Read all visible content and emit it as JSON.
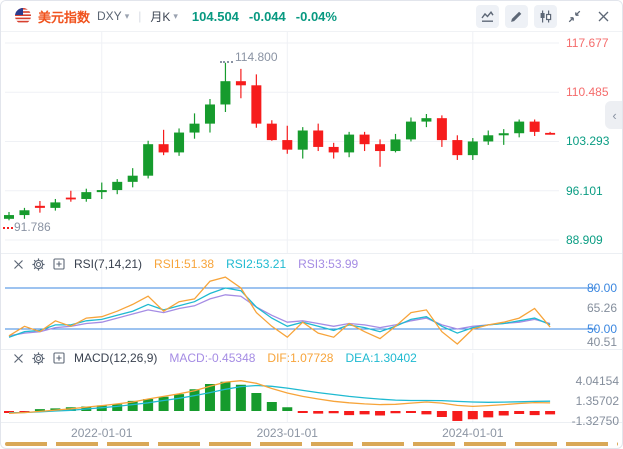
{
  "colors": {
    "up": "#169b2d",
    "down": "#f61c1c",
    "brand_orange": "#f0521d",
    "quote_teal": "#089981",
    "axis_red": "#f56c6c",
    "axis_teal": "#0a9d83",
    "axis_gray": "#848e9c",
    "ref_blue": "#3b87e0",
    "line_orange": "#f7a43a",
    "line_cyan": "#1fbad1",
    "line_purple": "#a58ce4",
    "grid": "#eff1f5",
    "scrollbar_orange": "#d9a857"
  },
  "header": {
    "symbol_name": "美元指数",
    "symbol_code": "DXY",
    "caret": "▾",
    "divider": "|",
    "period": "月K",
    "price": "104.504",
    "change": "-0.044",
    "change_pct": "-0.04%",
    "toolbar_icons": [
      "indicator-icon",
      "draw-icon",
      "candle-style-icon",
      "collapse-icon",
      "close-icon"
    ]
  },
  "main_chart": {
    "high_annotation": "114.800",
    "low_annotation": "91.786",
    "collapse_tab": "‹",
    "axis_labels": [
      {
        "text": "117.677",
        "value": 117.677,
        "tone": "red"
      },
      {
        "text": "110.485",
        "value": 110.485,
        "tone": "red"
      },
      {
        "text": "103.293",
        "value": 103.293,
        "tone": "teal"
      },
      {
        "text": "96.101",
        "value": 96.101,
        "tone": "teal"
      },
      {
        "text": "88.909",
        "value": 88.909,
        "tone": "teal"
      }
    ]
  },
  "rsi_panel": {
    "title": "RSI(7,14,21)",
    "values": [
      {
        "text": "RSI1:51.38",
        "tone": "orange"
      },
      {
        "text": "RSI2:53.21",
        "tone": "cyan"
      },
      {
        "text": "RSI3:53.99",
        "tone": "purple"
      }
    ],
    "axis_labels": [
      {
        "text": "80.00",
        "value": 80,
        "tone": "blue"
      },
      {
        "text": "65.26",
        "value": 65.26,
        "tone": "gray"
      },
      {
        "text": "50.00",
        "value": 50,
        "tone": "blue"
      },
      {
        "text": "40.51",
        "value": 40.51,
        "tone": "gray"
      }
    ],
    "ref_lines": [
      80,
      50
    ]
  },
  "macd_panel": {
    "title": "MACD(12,26,9)",
    "values": [
      {
        "text": "MACD:-0.45348",
        "tone": "purple"
      },
      {
        "text": "DIF:1.07728",
        "tone": "orange"
      },
      {
        "text": "DEA:1.30402",
        "tone": "cyan"
      }
    ],
    "axis_labels": [
      {
        "text": "4.04154",
        "value": 4.04154
      },
      {
        "text": "1.35702",
        "value": 1.35702
      },
      {
        "text": "-1.32750",
        "value": -1.3275
      }
    ]
  },
  "time_axis": {
    "labels": [
      {
        "text": "2022-01-01",
        "index": 6
      },
      {
        "text": "2023-01-01",
        "index": 18
      },
      {
        "text": "2024-01-01",
        "index": 30
      }
    ]
  },
  "chart_data": [
    {
      "type": "candlestick",
      "title": "美元指数 DXY 月K",
      "period": "monthly",
      "ylim": [
        88.909,
        117.677
      ],
      "marked_high": 114.8,
      "marked_low": 91.786,
      "last_price": 104.504,
      "dates": [
        "2021-07",
        "2021-08",
        "2021-09",
        "2021-10",
        "2021-11",
        "2021-12",
        "2022-01",
        "2022-02",
        "2022-03",
        "2022-04",
        "2022-05",
        "2022-06",
        "2022-07",
        "2022-08",
        "2022-09",
        "2022-10",
        "2022-11",
        "2022-12",
        "2023-01",
        "2023-02",
        "2023-03",
        "2023-04",
        "2023-05",
        "2023-06",
        "2023-07",
        "2023-08",
        "2023-09",
        "2023-10",
        "2023-11",
        "2023-12",
        "2024-01",
        "2024-02",
        "2024-03",
        "2024-04",
        "2024-05",
        "2024-06"
      ],
      "open": [
        92.0,
        92.55,
        93.9,
        93.6,
        95.1,
        94.9,
        95.9,
        96.2,
        97.4,
        98.3,
        102.9,
        101.7,
        104.6,
        105.9,
        108.7,
        112.1,
        111.5,
        105.9,
        103.5,
        102.1,
        104.9,
        102.5,
        101.7,
        104.3,
        102.9,
        101.9,
        103.6,
        106.2,
        106.7,
        103.5,
        101.3,
        103.3,
        104.2,
        104.5,
        106.2,
        104.548
      ],
      "high": [
        93.0,
        93.6,
        94.6,
        94.9,
        96.1,
        96.4,
        97.3,
        97.8,
        99.4,
        103.4,
        105.0,
        105.2,
        107.4,
        109.5,
        114.8,
        113.9,
        113.1,
        106.4,
        105.6,
        105.4,
        105.9,
        103.1,
        104.7,
        104.7,
        103.6,
        104.4,
        106.8,
        107.3,
        107.1,
        104.2,
        103.8,
        104.9,
        105.1,
        106.5,
        106.5,
        104.7
      ],
      "low": [
        91.786,
        92.0,
        92.9,
        93.2,
        94.5,
        94.5,
        94.9,
        95.6,
        96.6,
        97.9,
        101.3,
        101.2,
        103.7,
        104.6,
        107.6,
        109.6,
        105.3,
        103.4,
        101.5,
        100.8,
        101.9,
        100.8,
        101.0,
        101.9,
        99.6,
        101.7,
        103.3,
        105.4,
        102.5,
        100.6,
        100.6,
        102.8,
        102.8,
        103.9,
        104.1,
        104.3
      ],
      "close": [
        92.55,
        93.25,
        93.6,
        94.4,
        94.9,
        95.9,
        96.2,
        97.4,
        98.3,
        102.9,
        101.7,
        104.6,
        105.9,
        108.7,
        112.1,
        111.5,
        105.9,
        103.5,
        102.1,
        104.9,
        102.5,
        101.7,
        104.3,
        102.9,
        101.9,
        103.6,
        106.2,
        106.7,
        103.5,
        101.3,
        103.3,
        104.2,
        104.5,
        106.2,
        104.7,
        104.504
      ]
    },
    {
      "type": "line",
      "title": "RSI(7,14,21)",
      "ylim": [
        38,
        95
      ],
      "ref_lines": [
        80,
        50
      ],
      "series": [
        {
          "name": "RSI1",
          "period": 7,
          "color": "#f7a43a",
          "values": [
            45,
            52,
            48,
            56,
            52,
            58,
            59,
            63,
            68,
            74,
            63,
            70,
            72,
            85,
            88,
            80,
            62,
            52,
            44,
            55,
            47,
            44,
            54,
            48,
            43,
            52,
            62,
            64,
            48,
            39,
            50,
            53,
            55,
            58,
            65,
            51.38
          ]
        },
        {
          "name": "RSI2",
          "period": 14,
          "color": "#1fbad1",
          "values": [
            44,
            48,
            49,
            53,
            53,
            56,
            57,
            60,
            63,
            68,
            64,
            67,
            70,
            76,
            80,
            78,
            66,
            58,
            52,
            55,
            52,
            49,
            53,
            51,
            48,
            52,
            57,
            59,
            52,
            47,
            51,
            53,
            54,
            56,
            58,
            53.21
          ]
        },
        {
          "name": "RSI3",
          "period": 21,
          "color": "#a58ce4",
          "values": [
            45,
            47,
            48,
            51,
            52,
            54,
            55,
            58,
            61,
            64,
            62,
            65,
            67,
            72,
            75,
            74,
            66,
            60,
            55,
            56,
            54,
            52,
            54,
            53,
            51,
            53,
            56,
            58,
            53,
            50,
            52,
            53,
            54,
            55,
            57,
            53.99
          ]
        }
      ]
    },
    {
      "type": "bar",
      "title": "MACD(12,26,9)",
      "zero_line": 0,
      "series": [
        {
          "name": "MACD",
          "style": "histogram",
          "values": [
            -0.15,
            -0.08,
            0.25,
            0.35,
            0.5,
            0.6,
            0.75,
            0.9,
            1.35,
            1.6,
            1.9,
            2.25,
            2.9,
            3.6,
            3.9,
            3.5,
            2.4,
            1.2,
            0.5,
            -0.2,
            -0.35,
            -0.3,
            -0.55,
            -0.45,
            -0.6,
            -0.3,
            -0.2,
            -0.45,
            -0.8,
            -1.33,
            -1.1,
            -0.85,
            -0.6,
            -0.4,
            -0.55,
            -0.45348
          ]
        },
        {
          "name": "DIF",
          "style": "line",
          "color": "#f7a43a",
          "values": [
            -0.3,
            -0.22,
            -0.05,
            0.12,
            0.3,
            0.52,
            0.72,
            0.95,
            1.2,
            1.6,
            1.95,
            2.3,
            2.7,
            3.3,
            3.85,
            4.04,
            3.7,
            3.0,
            2.4,
            1.95,
            1.6,
            1.3,
            1.1,
            0.95,
            0.85,
            0.9,
            1.05,
            1.2,
            1.05,
            0.75,
            0.62,
            0.72,
            0.85,
            1.0,
            1.12,
            1.07728
          ]
        },
        {
          "name": "DEA",
          "style": "line",
          "color": "#1fbad1",
          "values": [
            -0.22,
            -0.2,
            -0.12,
            0.0,
            0.1,
            0.26,
            0.44,
            0.62,
            0.85,
            1.1,
            1.4,
            1.7,
            2.05,
            2.45,
            2.9,
            3.25,
            3.4,
            3.3,
            3.05,
            2.75,
            2.45,
            2.2,
            1.95,
            1.75,
            1.58,
            1.45,
            1.4,
            1.4,
            1.38,
            1.28,
            1.2,
            1.16,
            1.18,
            1.23,
            1.28,
            1.30402
          ]
        }
      ]
    }
  ]
}
